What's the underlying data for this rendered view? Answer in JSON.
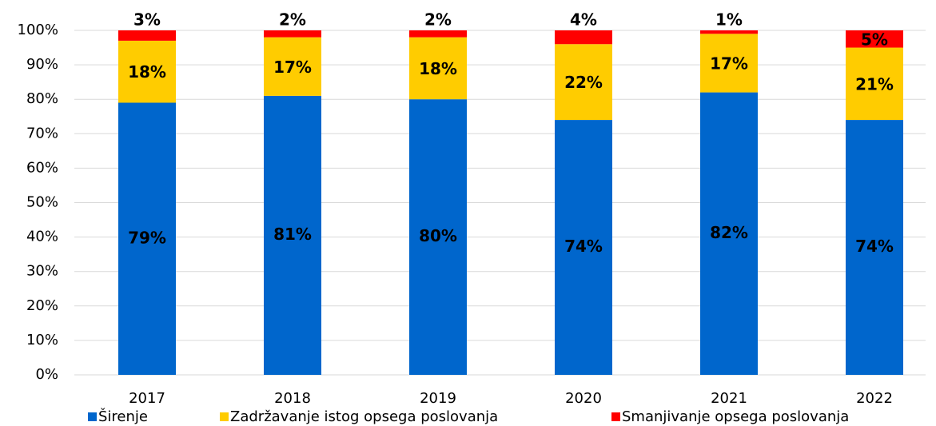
{
  "chart_data": {
    "type": "stacked_bar",
    "categories": [
      "2017",
      "2018",
      "2019",
      "2020",
      "2021",
      "2022"
    ],
    "series": [
      {
        "name": "Širenje",
        "color": "#0066cc",
        "values": [
          79,
          81,
          80,
          74,
          82,
          74
        ]
      },
      {
        "name": "Zadržavanje istog opsega poslovanja",
        "color": "#ffcc00",
        "values": [
          18,
          17,
          18,
          22,
          17,
          21
        ]
      },
      {
        "name": "Smanjivanje opsega poslovanja",
        "color": "#ff0000",
        "values": [
          3,
          2,
          2,
          4,
          1,
          5
        ]
      }
    ],
    "value_labels": [
      [
        "79%",
        "81%",
        "80%",
        "74%",
        "82%",
        "74%"
      ],
      [
        "18%",
        "17%",
        "18%",
        "22%",
        "17%",
        "21%"
      ],
      [
        "3%",
        "2%",
        "2%",
        "4%",
        "1%",
        "5%"
      ]
    ],
    "ylim": [
      0,
      100
    ],
    "yticks": [
      {
        "value": 0,
        "label": "0%"
      },
      {
        "value": 10,
        "label": "10%"
      },
      {
        "value": 20,
        "label": "20%"
      },
      {
        "value": 30,
        "label": "30%"
      },
      {
        "value": 40,
        "label": "40%"
      },
      {
        "value": 50,
        "label": "50%"
      },
      {
        "value": 60,
        "label": "60%"
      },
      {
        "value": 70,
        "label": "70%"
      },
      {
        "value": 80,
        "label": "80%"
      },
      {
        "value": 90,
        "label": "90%"
      },
      {
        "value": 100,
        "label": "100%"
      }
    ],
    "grid": true,
    "legend": "bottom"
  }
}
